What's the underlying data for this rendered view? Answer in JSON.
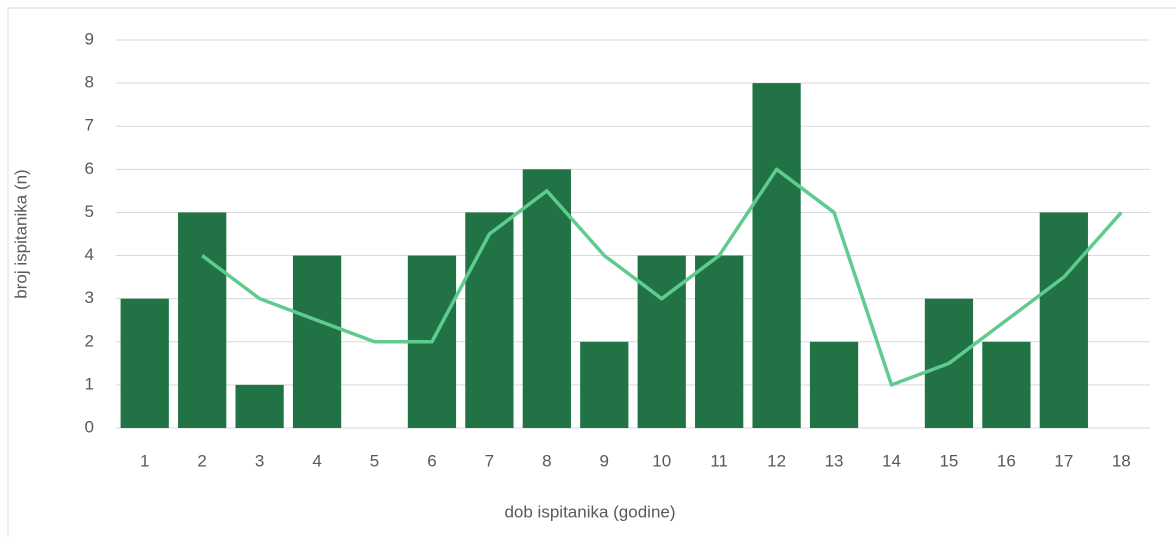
{
  "chart_data": {
    "type": "bar",
    "x_label": "dob ispitanika (godine)",
    "y_label": "broj ispitanika (n)",
    "categories": [
      "1",
      "2",
      "3",
      "4",
      "5",
      "6",
      "7",
      "8",
      "9",
      "10",
      "11",
      "12",
      "13",
      "14",
      "15",
      "16",
      "17",
      "18"
    ],
    "series": [
      {
        "type": "bar",
        "color": "#217346",
        "values": [
          3,
          5,
          1,
          4,
          0,
          4,
          5,
          6,
          2,
          4,
          4,
          8,
          2,
          0,
          3,
          2,
          5,
          0
        ]
      },
      {
        "type": "line",
        "color": "#5fcb8f",
        "values": [
          null,
          4,
          3,
          2.5,
          2,
          2,
          4.5,
          5.5,
          4,
          3,
          4,
          6,
          5,
          1,
          1.5,
          2.5,
          3.5,
          5
        ]
      }
    ],
    "ylim": [
      0,
      9
    ],
    "yticks": [
      0,
      1,
      2,
      3,
      4,
      5,
      6,
      7,
      8,
      9
    ],
    "grid": true
  }
}
